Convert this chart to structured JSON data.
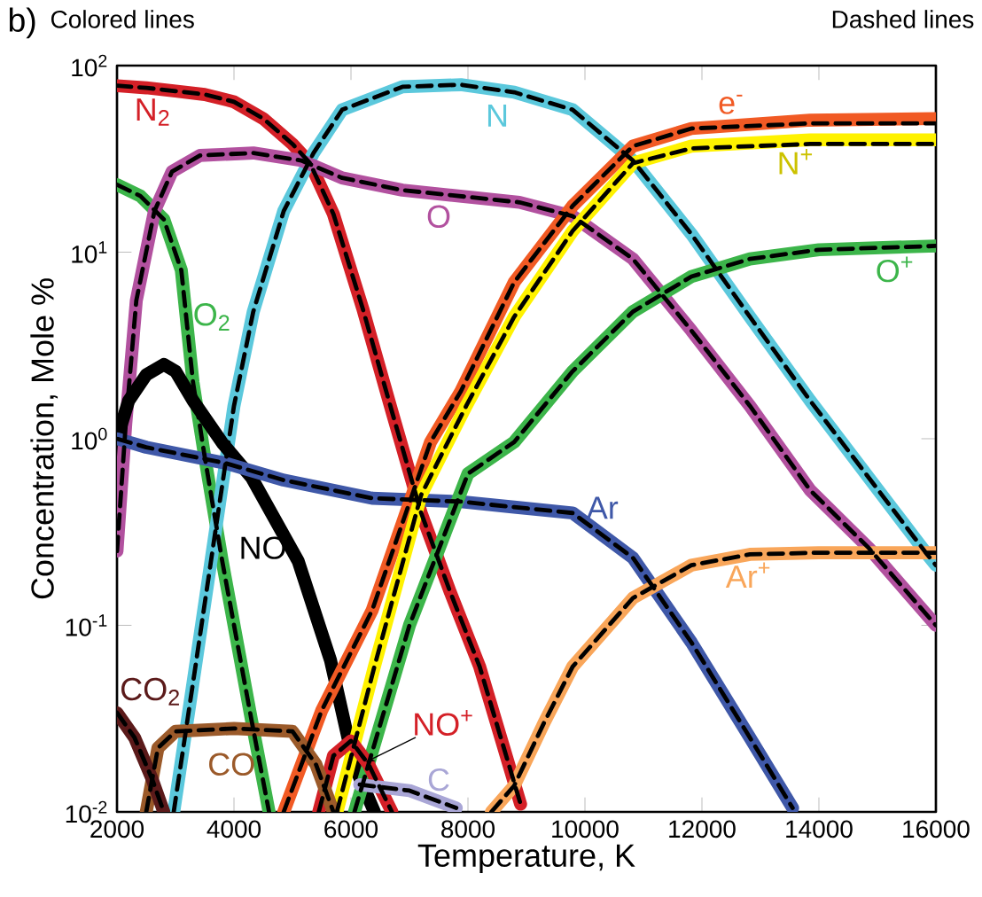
{
  "chart_data": {
    "type": "line",
    "xlabel": "Temperature, K",
    "ylabel": "Concentration, Mole %",
    "log": "y",
    "annotations": [
      "b)",
      "Colored lines",
      "Dashed lines"
    ],
    "xlim": [
      2000,
      16000
    ],
    "xticks": [
      2000,
      4000,
      6000,
      8000,
      10000,
      12000,
      14000,
      16000
    ],
    "ylim": [
      0.01,
      100
    ],
    "yticks": [
      {
        "value": 0.01,
        "label": "10$^{-2}$"
      },
      {
        "value": 0.1,
        "label": "10$^{-1}$"
      },
      {
        "value": 1,
        "label": "10$^{0}$"
      },
      {
        "value": 10,
        "label": "10$^{1}$"
      },
      {
        "value": 100,
        "label": "10$^{2}$"
      }
    ],
    "grid": false,
    "series": [
      {
        "name": "N$_{2}$",
        "color": "#d42027",
        "line_style": "solid",
        "x": [
          2000,
          2500,
          3000,
          3500,
          4000,
          4500,
          5000,
          5300,
          5700,
          6200,
          6700,
          7200,
          7700,
          8200,
          8900
        ],
        "values": [
          78,
          76,
          73,
          70,
          64,
          52,
          38,
          30,
          16,
          5,
          1.4,
          0.4,
          0.15,
          0.06,
          0.011
        ]
      },
      {
        "name": "O$_{2}$",
        "color": "#3cb54a",
        "line_style": "solid",
        "x": [
          2000,
          2400,
          2800,
          3100,
          3300,
          3500,
          3800,
          4300,
          4600
        ],
        "values": [
          23,
          20,
          15,
          8,
          2,
          0.8,
          0.22,
          0.031,
          0.01
        ]
      },
      {
        "name": "N",
        "color": "#5bc8dc",
        "line_style": "solid",
        "x": [
          2970,
          3330,
          3640,
          4000,
          4330,
          4850,
          5360,
          5850,
          6880,
          7880,
          8790,
          9790,
          10820,
          11820,
          12820,
          13850,
          15850,
          16000
        ],
        "values": [
          0.01,
          0.057,
          0.26,
          1.5,
          4.8,
          16.6,
          34,
          58,
          77,
          79,
          72,
          58,
          31,
          12.5,
          4.5,
          1.6,
          0.24,
          0.21
        ]
      },
      {
        "name": "O",
        "color": "#b2519f",
        "line_style": "solid",
        "x": [
          2000,
          2150,
          2330,
          2640,
          2940,
          3420,
          4330,
          5150,
          5850,
          6880,
          8880,
          9790,
          10820,
          11820,
          12820,
          13850,
          14850,
          16000
        ],
        "values": [
          0.25,
          1.2,
          5.5,
          16.6,
          27,
          33,
          34,
          31,
          25,
          21.5,
          18.5,
          15.6,
          9.2,
          3.8,
          1.5,
          0.53,
          0.26,
          0.1
        ]
      },
      {
        "name": "NO",
        "color": "#000000",
        "line_style": "solid",
        "x": [
          2000,
          2200,
          2500,
          2800,
          3000,
          3300,
          3800,
          4300,
          5100,
          5650,
          6050,
          6400
        ],
        "values": [
          1.0,
          1.6,
          2.2,
          2.5,
          2.3,
          1.6,
          0.95,
          0.62,
          0.22,
          0.065,
          0.018,
          0.01
        ]
      },
      {
        "name": "Ar",
        "color": "#3f58a8",
        "line_style": "solid",
        "x": [
          2000,
          2500,
          3850,
          4850,
          6360,
          7880,
          8790,
          9790,
          10820,
          11820,
          12820,
          13550
        ],
        "values": [
          1.0,
          0.9,
          0.74,
          0.6,
          0.48,
          0.46,
          0.43,
          0.4,
          0.23,
          0.081,
          0.025,
          0.0105
        ]
      },
      {
        "name": "e$^{-}$",
        "color": "#f15a24",
        "line_style": "solid",
        "x": [
          4850,
          5500,
          6360,
          7360,
          7880,
          8790,
          9790,
          10820,
          11820,
          13850,
          16000
        ],
        "values": [
          0.01,
          0.035,
          0.12,
          0.96,
          1.8,
          6.9,
          17.7,
          37,
          46,
          51,
          52
        ]
      },
      {
        "name": "N$^{+}$",
        "color": "#fff200",
        "line_style": "solid",
        "x": [
          5760,
          6400,
          7200,
          7970,
          8790,
          9790,
          10820,
          11820,
          13850,
          16000
        ],
        "values": [
          0.01,
          0.06,
          0.5,
          1.5,
          4.5,
          13,
          30,
          37,
          40,
          40
        ]
      },
      {
        "name": "O$^{+}$",
        "color": "#3cb54a",
        "line_style": "solid",
        "x": [
          6060,
          7000,
          8000,
          8790,
          9790,
          10820,
          11820,
          12820,
          14000,
          16000
        ],
        "values": [
          0.01,
          0.1,
          0.65,
          0.96,
          2.3,
          4.8,
          7.4,
          9.2,
          10.3,
          10.8
        ]
      },
      {
        "name": "Ar$^{+}$",
        "color": "#f9a65a",
        "line_style": "solid",
        "x": [
          8400,
          8790,
          9300,
          9790,
          10820,
          11820,
          12820,
          14000,
          16000
        ],
        "values": [
          0.01,
          0.0138,
          0.03,
          0.06,
          0.14,
          0.21,
          0.24,
          0.245,
          0.245
        ]
      },
      {
        "name": "NO$^{+}$",
        "color": "#d42027",
        "line_style": "solid",
        "x": [
          5450,
          5700,
          6000,
          6300,
          6700
        ],
        "values": [
          0.01,
          0.02,
          0.024,
          0.018,
          0.01
        ]
      },
      {
        "name": "C",
        "color": "#a9a6d6",
        "line_style": "solid",
        "x": [
          6150,
          7000,
          7800
        ],
        "values": [
          0.014,
          0.013,
          0.0105
        ]
      },
      {
        "name": "CO",
        "color": "#9b5a2a",
        "line_style": "solid",
        "x": [
          2500,
          2700,
          3000,
          4000,
          5000,
          5400,
          5700
        ],
        "values": [
          0.01,
          0.022,
          0.027,
          0.028,
          0.027,
          0.018,
          0.01
        ]
      },
      {
        "name": "CO$_{2}$",
        "color": "#5b1a1a",
        "line_style": "solid",
        "x": [
          2000,
          2300,
          2600,
          2800
        ],
        "values": [
          0.034,
          0.025,
          0.015,
          0.01
        ]
      },
      {
        "color": "#000000",
        "line_style": "dashed",
        "x": [
          2000,
          2500,
          3000,
          3500,
          4000,
          4500,
          5000,
          5300,
          5700,
          6200,
          6700,
          7200,
          7700,
          8200,
          8900
        ],
        "values": [
          78,
          76,
          73,
          70,
          64,
          52,
          38,
          30,
          16,
          5,
          1.4,
          0.4,
          0.15,
          0.06,
          0.011
        ]
      },
      {
        "color": "#000000",
        "line_style": "dashed",
        "x": [
          2000,
          2400,
          2800,
          3100,
          3300,
          3500,
          3800,
          4300,
          4600
        ],
        "values": [
          23,
          20,
          15,
          8,
          2,
          0.8,
          0.22,
          0.031,
          0.01
        ]
      },
      {
        "color": "#000000",
        "line_style": "dashed",
        "x": [
          2970,
          3330,
          3640,
          4000,
          4330,
          4850,
          5360,
          5850,
          6880,
          7880,
          8790,
          9790,
          10820,
          11820,
          12820,
          13850,
          15850,
          16000
        ],
        "values": [
          0.01,
          0.057,
          0.26,
          1.5,
          4.8,
          16.6,
          34,
          58,
          77,
          79,
          72,
          58,
          31,
          12.5,
          4.5,
          1.6,
          0.24,
          0.21
        ]
      },
      {
        "color": "#000000",
        "line_style": "dashed",
        "x": [
          2000,
          2150,
          2330,
          2640,
          2940,
          3420,
          4330,
          5150,
          5850,
          6880,
          8880,
          9790,
          10820,
          11820,
          12820,
          13850,
          14850,
          16000
        ],
        "values": [
          0.25,
          1.2,
          5.5,
          16.6,
          27,
          33,
          34,
          31,
          25,
          21.5,
          18.5,
          15.6,
          9.2,
          3.8,
          1.5,
          0.53,
          0.26,
          0.1
        ]
      },
      {
        "color": "#000000",
        "line_style": "dashed",
        "x": [
          2000,
          2500,
          3850,
          4850,
          6360,
          7880,
          8790,
          9790,
          10820,
          11820,
          12820,
          13550
        ],
        "values": [
          1.0,
          0.9,
          0.74,
          0.6,
          0.48,
          0.46,
          0.43,
          0.4,
          0.23,
          0.081,
          0.025,
          0.0105
        ]
      },
      {
        "color": "#000000",
        "line_style": "dashed",
        "x": [
          4850,
          5500,
          6360,
          7360,
          7880,
          8790,
          9790,
          10820,
          11820,
          13850,
          16000
        ],
        "values": [
          0.01,
          0.035,
          0.12,
          0.96,
          1.8,
          6.9,
          17.7,
          37,
          46,
          49,
          49
        ]
      },
      {
        "color": "#000000",
        "line_style": "dashed",
        "x": [
          5760,
          6400,
          7200,
          7970,
          8790,
          9790,
          10820,
          11820,
          13850,
          16000
        ],
        "values": [
          0.01,
          0.06,
          0.5,
          1.5,
          4.5,
          13,
          30,
          36,
          38,
          38
        ]
      },
      {
        "color": "#000000",
        "line_style": "dashed",
        "x": [
          6060,
          7000,
          8000,
          8790,
          9790,
          10820,
          11820,
          12820,
          14000,
          16000
        ],
        "values": [
          0.01,
          0.1,
          0.65,
          0.96,
          2.3,
          4.8,
          7.4,
          9.2,
          10.3,
          10.8
        ]
      },
      {
        "color": "#000000",
        "line_style": "dashed",
        "x": [
          8400,
          8790,
          9300,
          9790,
          10820,
          11820,
          12820,
          14000,
          16000
        ],
        "values": [
          0.01,
          0.0138,
          0.03,
          0.06,
          0.14,
          0.21,
          0.24,
          0.245,
          0.245
        ]
      },
      {
        "color": "#000000",
        "line_style": "dashed",
        "x": [
          5450,
          5700,
          6000,
          6300,
          6700
        ],
        "values": [
          0.01,
          0.02,
          0.024,
          0.018,
          0.01
        ]
      },
      {
        "color": "#000000",
        "line_style": "dashed",
        "x": [
          6150,
          7000,
          7800
        ],
        "values": [
          0.014,
          0.013,
          0.0105
        ]
      },
      {
        "color": "#000000",
        "line_style": "dashed",
        "x": [
          2500,
          2700,
          3000,
          4000,
          5000,
          5400,
          5700
        ],
        "values": [
          0.01,
          0.022,
          0.027,
          0.028,
          0.027,
          0.018,
          0.01
        ]
      },
      {
        "color": "#000000",
        "line_style": "dashed",
        "x": [
          2000,
          2300,
          2600,
          2800
        ],
        "values": [
          0.034,
          0.025,
          0.015,
          0.01
        ]
      }
    ]
  }
}
